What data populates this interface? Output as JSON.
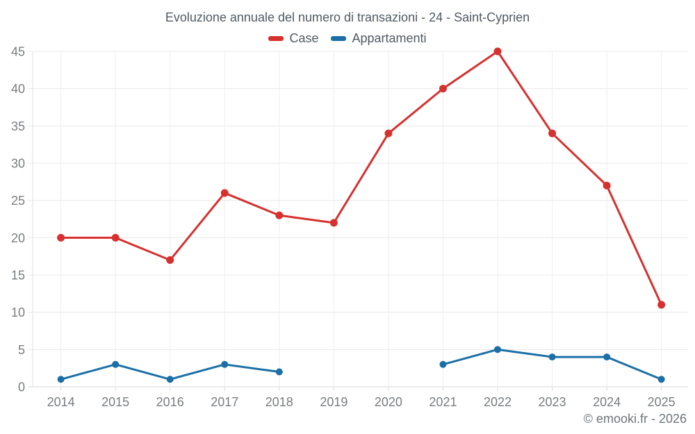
{
  "chart_data": {
    "type": "line",
    "title": "Evoluzione annuale del numero di transazioni - 24 - Saint-Cyprien",
    "categories": [
      "2014",
      "2015",
      "2016",
      "2017",
      "2018",
      "2019",
      "2020",
      "2021",
      "2022",
      "2023",
      "2024",
      "2025"
    ],
    "series": [
      {
        "name": "Case",
        "color": "#d6312e",
        "values": [
          20,
          20,
          17,
          26,
          23,
          22,
          34,
          40,
          45,
          34,
          27,
          11
        ]
      },
      {
        "name": "Appartamenti",
        "color": "#1b6fa6",
        "values": [
          1,
          3,
          1,
          3,
          2,
          null,
          null,
          3,
          5,
          4,
          4,
          1
        ]
      }
    ],
    "xlabel": "",
    "ylabel": "",
    "ylim": [
      0,
      45
    ],
    "ytick_step": 5,
    "grid": true,
    "legend_position": "top",
    "copyright": "© emooki.fr - 2026"
  }
}
